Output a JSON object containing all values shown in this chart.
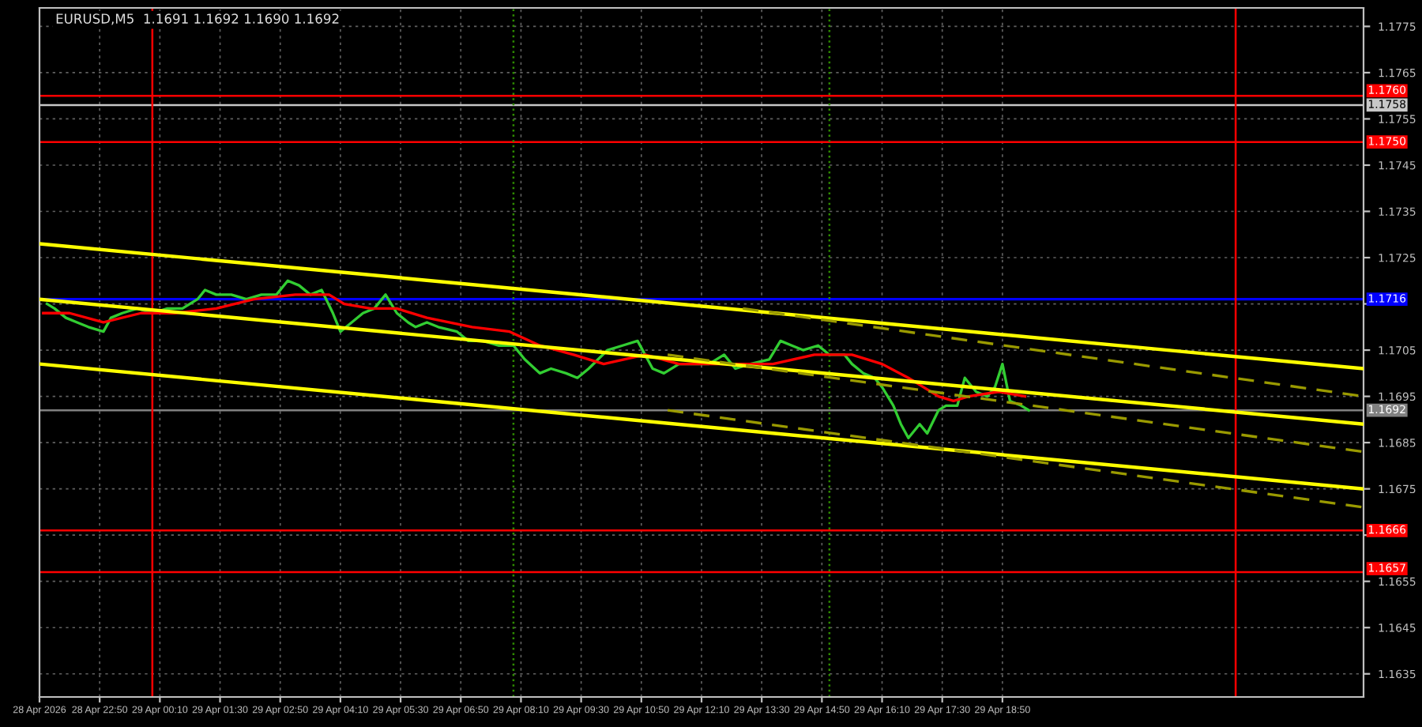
{
  "chart_data": {
    "type": "line",
    "title": "EURUSD,M5  1.1691 1.1692 1.1690 1.1692",
    "series": [
      {
        "color": "#32cd32",
        "x": [
          "2026-04-28T21:40",
          "2026-04-28T21:50",
          "2026-04-28T22:05",
          "2026-04-28T22:20",
          "2026-04-28T22:35",
          "2026-04-28T22:55",
          "2026-04-28T23:05",
          "2026-04-28T23:20",
          "2026-04-28T23:40",
          "2026-04-29T00:00",
          "2026-04-29T00:20",
          "2026-04-29T00:40",
          "2026-04-29T01:00",
          "2026-04-29T01:10",
          "2026-04-29T01:25",
          "2026-04-29T01:45",
          "2026-04-29T02:05",
          "2026-04-29T02:25",
          "2026-04-29T02:45",
          "2026-04-29T03:00",
          "2026-04-29T03:15",
          "2026-04-29T03:30",
          "2026-04-29T03:45",
          "2026-04-29T04:00",
          "2026-04-29T04:10",
          "2026-04-29T04:25",
          "2026-04-29T04:40",
          "2026-04-29T04:55",
          "2026-04-29T05:10",
          "2026-04-29T05:25",
          "2026-04-29T05:40",
          "2026-04-29T05:50",
          "2026-04-29T06:05",
          "2026-04-29T06:20",
          "2026-04-29T06:45",
          "2026-04-29T07:00",
          "2026-04-29T07:20",
          "2026-04-29T07:40",
          "2026-04-29T08:00",
          "2026-04-29T08:15",
          "2026-04-29T08:35",
          "2026-04-29T08:50",
          "2026-04-29T09:10",
          "2026-04-29T09:25",
          "2026-04-29T09:40",
          "2026-04-29T10:05",
          "2026-04-29T10:25",
          "2026-04-29T10:45",
          "2026-04-29T11:05",
          "2026-04-29T11:20",
          "2026-04-29T11:40",
          "2026-04-29T12:00",
          "2026-04-29T12:20",
          "2026-04-29T12:40",
          "2026-04-29T12:55",
          "2026-04-29T13:15",
          "2026-04-29T13:40",
          "2026-04-29T13:55",
          "2026-04-29T14:10",
          "2026-04-29T14:25",
          "2026-04-29T14:45",
          "2026-04-29T15:00",
          "2026-04-29T15:20",
          "2026-04-29T15:30",
          "2026-04-29T15:45",
          "2026-04-29T16:00",
          "2026-04-29T16:10",
          "2026-04-29T16:25",
          "2026-04-29T16:35",
          "2026-04-29T16:45",
          "2026-04-29T17:00",
          "2026-04-29T17:10",
          "2026-04-29T17:25",
          "2026-04-29T17:35",
          "2026-04-29T17:50",
          "2026-04-29T18:00",
          "2026-04-29T18:15",
          "2026-04-29T18:30",
          "2026-04-29T18:40",
          "2026-04-29T18:50",
          "2026-04-29T19:00",
          "2026-04-29T19:15",
          "2026-04-29T19:25"
        ],
        "values": [
          1.1715,
          1.1714,
          1.1712,
          1.1711,
          1.171,
          1.1709,
          1.1712,
          1.1713,
          1.1714,
          1.1713,
          1.1714,
          1.1714,
          1.1716,
          1.1718,
          1.1717,
          1.1717,
          1.1716,
          1.1717,
          1.1717,
          1.172,
          1.1719,
          1.1717,
          1.1718,
          1.1713,
          1.1709,
          1.1711,
          1.1713,
          1.1714,
          1.1717,
          1.1713,
          1.1711,
          1.171,
          1.1711,
          1.171,
          1.1709,
          1.1707,
          1.1707,
          1.1706,
          1.1706,
          1.1703,
          1.17,
          1.1701,
          1.17,
          1.1699,
          1.1701,
          1.1705,
          1.1706,
          1.1707,
          1.1701,
          1.17,
          1.1702,
          1.1702,
          1.1702,
          1.1704,
          1.1701,
          1.1702,
          1.1703,
          1.1707,
          1.1706,
          1.1705,
          1.1706,
          1.1704,
          1.1704,
          1.1702,
          1.17,
          1.1699,
          1.1697,
          1.1693,
          1.1689,
          1.1686,
          1.1689,
          1.1687,
          1.1692,
          1.1693,
          1.1693,
          1.1699,
          1.1696,
          1.1695,
          1.1697,
          1.1702,
          1.1694,
          1.1693,
          1.1692
        ]
      },
      {
        "color": "#ff0000",
        "x": [
          "2026-04-28T21:35",
          "2026-04-28T22:10",
          "2026-04-28T22:55",
          "2026-04-28T23:45",
          "2026-04-29T00:30",
          "2026-04-29T01:25",
          "2026-04-29T02:15",
          "2026-04-29T03:10",
          "2026-04-29T03:55",
          "2026-04-29T04:15",
          "2026-04-29T04:50",
          "2026-04-29T05:25",
          "2026-04-29T06:05",
          "2026-04-29T07:05",
          "2026-04-29T07:55",
          "2026-04-29T08:35",
          "2026-04-29T09:20",
          "2026-04-29T10:00",
          "2026-04-29T10:55",
          "2026-04-29T11:40",
          "2026-04-29T12:40",
          "2026-04-29T13:45",
          "2026-04-29T14:40",
          "2026-04-29T15:30",
          "2026-04-29T16:10",
          "2026-04-29T16:45",
          "2026-04-29T17:25",
          "2026-04-29T17:45",
          "2026-04-29T18:05",
          "2026-04-29T18:45",
          "2026-04-29T19:20"
        ],
        "values": [
          1.1713,
          1.1713,
          1.1711,
          1.1713,
          1.1713,
          1.1714,
          1.1716,
          1.1717,
          1.1717,
          1.1715,
          1.1714,
          1.1714,
          1.1712,
          1.171,
          1.1709,
          1.1706,
          1.1704,
          1.1702,
          1.1704,
          1.1702,
          1.1702,
          1.1702,
          1.1704,
          1.1704,
          1.1702,
          1.1699,
          1.1695,
          1.1694,
          1.1695,
          1.1696,
          1.1695
        ]
      },
      {
        "color": "#ffff00",
        "x": [
          "2026-04-28T21:30",
          "2026-04-30T02:50"
        ],
        "values": [
          1.1728,
          1.1701
        ]
      },
      {
        "color": "#ffff00",
        "x": [
          "2026-04-28T21:30",
          "2026-04-30T02:50"
        ],
        "values": [
          1.1716,
          1.1689
        ]
      },
      {
        "color": "#ffff00",
        "x": [
          "2026-04-28T21:30",
          "2026-04-30T02:50"
        ],
        "values": [
          1.1702,
          1.1675
        ]
      },
      {
        "color": "#9a9a00",
        "line_style": "dashed",
        "x": [
          "2026-04-29T13:05",
          "2026-04-30T02:50"
        ],
        "values": [
          1.1714,
          1.1695
        ]
      },
      {
        "color": "#9a9a00",
        "line_style": "dashed",
        "x": [
          "2026-04-29T11:25",
          "2026-04-30T02:50"
        ],
        "values": [
          1.1704,
          1.1683
        ]
      },
      {
        "color": "#9a9a00",
        "line_style": "dashed",
        "x": [
          "2026-04-29T11:25",
          "2026-04-30T02:50"
        ],
        "values": [
          1.1692,
          1.1671
        ]
      }
    ],
    "xlim": [
      "2026-04-28T21:30",
      "2026-04-30T02:50"
    ],
    "xticks": [
      {
        "value": "2026-04-28T21:30",
        "label": "28 Apr 2026"
      },
      {
        "value": "2026-04-28T22:50",
        "label": "28 Apr 22:50"
      },
      {
        "value": "2026-04-29T00:10",
        "label": "29 Apr 00:10"
      },
      {
        "value": "2026-04-29T01:30",
        "label": "29 Apr 01:30"
      },
      {
        "value": "2026-04-29T02:50",
        "label": "29 Apr 02:50"
      },
      {
        "value": "2026-04-29T04:10",
        "label": "29 Apr 04:10"
      },
      {
        "value": "2026-04-29T05:30",
        "label": "29 Apr 05:30"
      },
      {
        "value": "2026-04-29T06:50",
        "label": "29 Apr 06:50"
      },
      {
        "value": "2026-04-29T08:10",
        "label": "29 Apr 08:10"
      },
      {
        "value": "2026-04-29T09:30",
        "label": "29 Apr 09:30"
      },
      {
        "value": "2026-04-29T10:50",
        "label": "29 Apr 10:50"
      },
      {
        "value": "2026-04-29T12:10",
        "label": "29 Apr 12:10"
      },
      {
        "value": "2026-04-29T13:30",
        "label": "29 Apr 13:30"
      },
      {
        "value": "2026-04-29T14:50",
        "label": "29 Apr 14:50"
      },
      {
        "value": "2026-04-29T16:10",
        "label": "29 Apr 16:10"
      },
      {
        "value": "2026-04-29T17:30",
        "label": "29 Apr 17:30"
      },
      {
        "value": "2026-04-29T18:50",
        "label": "29 Apr 18:50"
      }
    ],
    "ylim": [
      1.163,
      1.1779
    ],
    "yticks": [
      {
        "value": 1.1635,
        "label": "1.1635"
      },
      {
        "value": 1.1645,
        "label": "1.1645"
      },
      {
        "value": 1.1655,
        "label": "1.1655"
      },
      {
        "value": 1.1665,
        "label": null
      },
      {
        "value": 1.1675,
        "label": "1.1675"
      },
      {
        "value": 1.1685,
        "label": "1.1685"
      },
      {
        "value": 1.1695,
        "label": "1.1695"
      },
      {
        "value": 1.1705,
        "label": "1.1705"
      },
      {
        "value": 1.1715,
        "label": null
      },
      {
        "value": 1.1725,
        "label": "1.1725"
      },
      {
        "value": 1.1735,
        "label": "1.1735"
      },
      {
        "value": 1.1745,
        "label": "1.1745"
      },
      {
        "value": 1.1755,
        "label": "1.1755"
      },
      {
        "value": 1.1765,
        "label": "1.1765"
      },
      {
        "value": 1.1775,
        "label": "1.1775"
      }
    ],
    "ref_lines": [
      {
        "axis": "y",
        "value": 1.176,
        "label": "1.1760",
        "color": "#ff0000"
      },
      {
        "axis": "y",
        "value": 1.1758,
        "label": "1.1758",
        "color": "#c8c8c8"
      },
      {
        "axis": "y",
        "value": 1.175,
        "label": "1.1750",
        "color": "#ff0000"
      },
      {
        "axis": "y",
        "value": 1.1716,
        "label": "1.1716",
        "color": "#0000ff"
      },
      {
        "axis": "y",
        "value": 1.1692,
        "label": "1.1692",
        "color": "#808080"
      },
      {
        "axis": "y",
        "value": 1.1666,
        "label": "1.1666",
        "color": "#ff0000"
      },
      {
        "axis": "y",
        "value": 1.1657,
        "label": "1.1657",
        "color": "#ff0000"
      },
      {
        "axis": "x",
        "value": "2026-04-29T00:00",
        "color": "#ff0000"
      },
      {
        "axis": "x",
        "value": "2026-04-30T00:00",
        "color": "#ff0000"
      },
      {
        "axis": "x",
        "value": "2026-04-29T08:00",
        "color": "#2e8b00",
        "line_style": "dotted"
      },
      {
        "axis": "x",
        "value": "2026-04-29T15:00",
        "color": "#2e8b00",
        "line_style": "dotted"
      }
    ],
    "grid": true,
    "legend": false,
    "marker": "none",
    "line_style": "solid"
  }
}
